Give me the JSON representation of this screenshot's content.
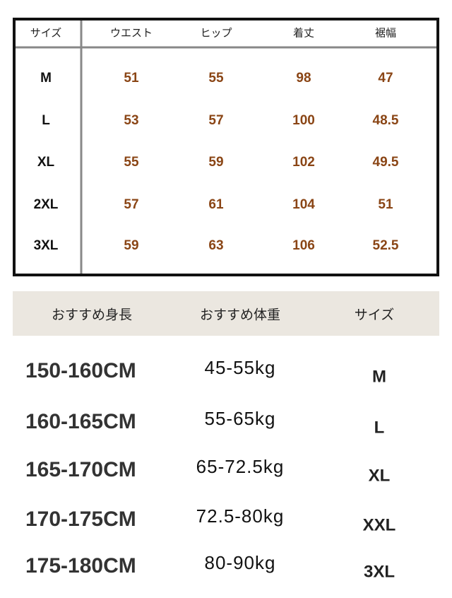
{
  "size_table": {
    "headers": [
      "サイズ",
      "ウエスト",
      "ヒップ",
      "着丈",
      "裾幅"
    ],
    "rows": [
      [
        "M",
        "51",
        "55",
        "98",
        "47"
      ],
      [
        "L",
        "53",
        "57",
        "100",
        "48.5"
      ],
      [
        "XL",
        "55",
        "59",
        "102",
        "49.5"
      ],
      [
        "2XL",
        "57",
        "61",
        "104",
        "51"
      ],
      [
        "3XL",
        "59",
        "63",
        "106",
        "52.5"
      ]
    ]
  },
  "recommend_table": {
    "headers": [
      "おすすめ身長",
      "おすすめ体重",
      "サイズ"
    ],
    "rows": [
      [
        "150-160CM",
        "45-55kg",
        "M"
      ],
      [
        "160-165CM",
        "55-65kg",
        "L"
      ],
      [
        "165-170CM",
        "65-72.5kg",
        "XL"
      ],
      [
        "170-175CM",
        "72.5-80kg",
        "XXL"
      ],
      [
        "175-180CM",
        "80-90kg",
        "3XL"
      ]
    ]
  }
}
